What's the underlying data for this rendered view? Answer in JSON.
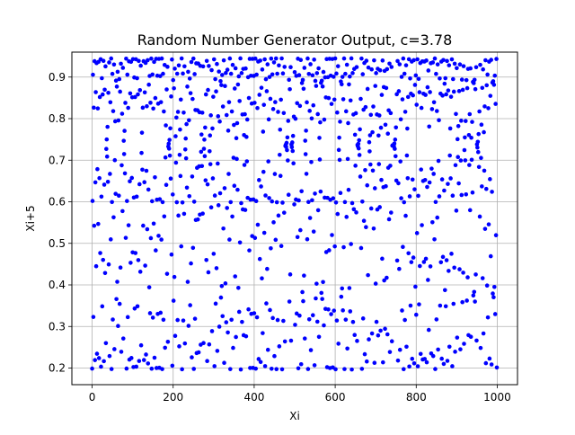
{
  "chart_data": {
    "type": "scatter",
    "title": "Random Number Generator Output, c=3.78",
    "xlabel": "Xi",
    "ylabel": "Xi+5",
    "xlim": [
      -50,
      1050
    ],
    "ylim": [
      0.16,
      0.96
    ],
    "xticks": [
      0,
      200,
      400,
      600,
      800,
      1000
    ],
    "yticks": [
      0.2,
      0.3,
      0.4,
      0.5,
      0.6,
      0.7,
      0.8,
      0.9
    ],
    "grid": true,
    "marker_color": "#0000ff",
    "generator": {
      "c": 3.78,
      "n": 1000,
      "lag": 5,
      "y_values_interpretation": "logistic map x[n+1] = c*x[n]*(1-x[n]), plotted y[i] = x[i+5] for i = 0..999, clipped to the observed range 0.195–0.945"
    }
  }
}
